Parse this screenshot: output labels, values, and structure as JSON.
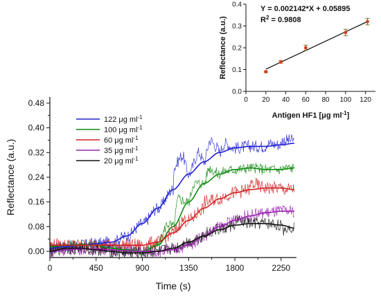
{
  "chart_data": [
    {
      "type": "line",
      "xlabel": "Time (s)",
      "ylabel": "Reflectance (a.u.)",
      "xlim": [
        0,
        2400
      ],
      "ylim": [
        -0.02,
        0.5
      ],
      "xticks": [
        "0",
        "450",
        "900",
        "1350",
        "1800",
        "2250"
      ],
      "xtick_values": [
        0,
        450,
        900,
        1350,
        1800,
        2250
      ],
      "yticks": [
        "0.00",
        "0.08",
        "0.16",
        "0.24",
        "0.32",
        "0.40",
        "0.48"
      ],
      "ytick_values": [
        0,
        0.08,
        0.16,
        0.24,
        0.32,
        0.4,
        0.48
      ],
      "legend_position": "top-left",
      "grid": false,
      "series": [
        {
          "name": "122 μg ml⁻¹",
          "unit_text": "μg ml",
          "sup": "-1",
          "label_value": "122",
          "color": "#2020d0",
          "fit": [
            [
              0,
              0.01
            ],
            [
              150,
              0.015
            ],
            [
              300,
              0.02
            ],
            [
              450,
              0.025
            ],
            [
              600,
              0.03
            ],
            [
              750,
              0.05
            ],
            [
              900,
              0.09
            ],
            [
              1050,
              0.14
            ],
            [
              1200,
              0.2
            ],
            [
              1350,
              0.25
            ],
            [
              1500,
              0.29
            ],
            [
              1650,
              0.32
            ],
            [
              1800,
              0.335
            ],
            [
              1950,
              0.34
            ],
            [
              2100,
              0.34
            ],
            [
              2250,
              0.345
            ],
            [
              2380,
              0.35
            ]
          ],
          "noise_amp": 0.02,
          "raw_start": 0,
          "raw_end": 2380,
          "raw_features": [
            [
              1200,
              0.27
            ],
            [
              1290,
              0.31
            ],
            [
              1450,
              0.32
            ],
            [
              1560,
              0.36
            ],
            [
              1620,
              0.34
            ],
            [
              1700,
              0.35
            ],
            [
              2100,
              0.35
            ],
            [
              2250,
              0.36
            ],
            [
              2370,
              0.36
            ]
          ]
        },
        {
          "name": "100 μg ml⁻¹",
          "unit_text": "μg ml",
          "sup": "-1",
          "label_value": "100",
          "color": "#108a10",
          "fit": [
            [
              0,
              0.015
            ],
            [
              150,
              0.02
            ],
            [
              300,
              0.022
            ],
            [
              450,
              0.02
            ],
            [
              600,
              0.01
            ],
            [
              750,
              0.005
            ],
            [
              900,
              0.0
            ],
            [
              1050,
              0.02
            ],
            [
              1200,
              0.08
            ],
            [
              1350,
              0.16
            ],
            [
              1500,
              0.22
            ],
            [
              1650,
              0.25
            ],
            [
              1800,
              0.265
            ],
            [
              1950,
              0.27
            ],
            [
              2100,
              0.265
            ],
            [
              2250,
              0.265
            ],
            [
              2380,
              0.27
            ]
          ],
          "noise_amp": 0.018,
          "raw_start": 0,
          "raw_end": 2380,
          "raw_features": [
            [
              1150,
              0.09
            ],
            [
              1250,
              0.17
            ],
            [
              1400,
              0.22
            ],
            [
              1550,
              0.27
            ],
            [
              1700,
              0.26
            ],
            [
              2000,
              0.27
            ],
            [
              2250,
              0.27
            ],
            [
              2370,
              0.27
            ]
          ]
        },
        {
          "name": "60 μg ml⁻¹",
          "unit_text": "μg ml",
          "sup": "-1",
          "label_value": "60",
          "color": "#d02020",
          "fit": [
            [
              0,
              0.02
            ],
            [
              150,
              0.02
            ],
            [
              300,
              0.02
            ],
            [
              450,
              0.02
            ],
            [
              600,
              0.02
            ],
            [
              750,
              0.02
            ],
            [
              900,
              0.02
            ],
            [
              1050,
              0.03
            ],
            [
              1200,
              0.06
            ],
            [
              1350,
              0.1
            ],
            [
              1500,
              0.14
            ],
            [
              1650,
              0.17
            ],
            [
              1800,
              0.19
            ],
            [
              1950,
              0.2
            ],
            [
              2100,
              0.205
            ],
            [
              2250,
              0.205
            ],
            [
              2380,
              0.2
            ]
          ],
          "noise_amp": 0.022,
          "raw_start": 0,
          "raw_end": 2380,
          "raw_features": [
            [
              1300,
              0.1
            ],
            [
              1500,
              0.16
            ],
            [
              1700,
              0.18
            ],
            [
              1950,
              0.22
            ],
            [
              2250,
              0.2
            ],
            [
              2370,
              0.2
            ]
          ]
        },
        {
          "name": "35 μg ml⁻¹",
          "unit_text": "μg ml",
          "sup": "-1",
          "label_value": "35",
          "color": "#9a20b0",
          "fit": [
            [
              0,
              0.0
            ],
            [
              150,
              0.005
            ],
            [
              300,
              0.008
            ],
            [
              450,
              0.008
            ],
            [
              600,
              0.005
            ],
            [
              750,
              0.002
            ],
            [
              900,
              0.0
            ],
            [
              1050,
              0.0
            ],
            [
              1200,
              0.005
            ],
            [
              1350,
              0.02
            ],
            [
              1500,
              0.05
            ],
            [
              1650,
              0.08
            ],
            [
              1800,
              0.1
            ],
            [
              1950,
              0.115
            ],
            [
              2100,
              0.125
            ],
            [
              2250,
              0.13
            ],
            [
              2380,
              0.13
            ]
          ],
          "noise_amp": 0.02,
          "raw_start": 0,
          "raw_end": 2380,
          "raw_features": [
            [
              1600,
              0.07
            ],
            [
              1800,
              0.11
            ],
            [
              2000,
              0.12
            ],
            [
              2250,
              0.13
            ],
            [
              2370,
              0.13
            ]
          ]
        },
        {
          "name": "20 μg ml⁻¹",
          "unit_text": "μg ml",
          "sup": "-1",
          "label_value": "20",
          "color": "#111111",
          "fit": [
            [
              0,
              0.0
            ],
            [
              150,
              0.01
            ],
            [
              300,
              0.01
            ],
            [
              450,
              0.005
            ],
            [
              600,
              0.0
            ],
            [
              750,
              -0.005
            ],
            [
              900,
              -0.005
            ],
            [
              1050,
              0.0
            ],
            [
              1200,
              0.01
            ],
            [
              1350,
              0.03
            ],
            [
              1500,
              0.05
            ],
            [
              1650,
              0.07
            ],
            [
              1800,
              0.085
            ],
            [
              1950,
              0.09
            ],
            [
              2100,
              0.09
            ],
            [
              2250,
              0.085
            ],
            [
              2380,
              0.075
            ]
          ],
          "noise_amp": 0.02,
          "raw_start": 0,
          "raw_end": 2380,
          "raw_features": [
            [
              1200,
              0.01
            ],
            [
              1500,
              0.06
            ],
            [
              1800,
              0.1
            ],
            [
              2000,
              0.09
            ],
            [
              2250,
              0.07
            ],
            [
              2370,
              0.08
            ]
          ]
        }
      ]
    },
    {
      "type": "scatter",
      "xlabel": "Antigen HF1 [μg ml⁻¹]",
      "xlabel_main": "Antigen HF1 [μg ml",
      "xlabel_sup": "-1",
      "xlabel_end": "]",
      "ylabel": "Reflectance (a.u.)",
      "xlim": [
        0,
        130
      ],
      "ylim": [
        0,
        0.4
      ],
      "xticks": [
        "0",
        "20",
        "40",
        "60",
        "80",
        "100",
        "120"
      ],
      "xtick_values": [
        0,
        20,
        40,
        60,
        80,
        100,
        120
      ],
      "yticks": [
        "0.0",
        "0.1",
        "0.2",
        "0.3",
        "0.4"
      ],
      "ytick_values": [
        0,
        0.1,
        0.2,
        0.3,
        0.4
      ],
      "equation": "Y = 0.002142*X + 0.05895",
      "r2_label": "R",
      "r2_sup": "2",
      "r2_value": " = 0.9808",
      "fit": {
        "slope": 0.002142,
        "intercept": 0.05895,
        "x_range": [
          20,
          122
        ]
      },
      "points": [
        {
          "x": 20,
          "y": 0.09,
          "err": 0.004
        },
        {
          "x": 35,
          "y": 0.135,
          "err": 0.006
        },
        {
          "x": 60,
          "y": 0.2,
          "err": 0.012
        },
        {
          "x": 100,
          "y": 0.27,
          "err": 0.015
        },
        {
          "x": 122,
          "y": 0.32,
          "err": 0.015
        }
      ],
      "point_color": "#d04020",
      "error_color": "#8a6a20"
    }
  ]
}
